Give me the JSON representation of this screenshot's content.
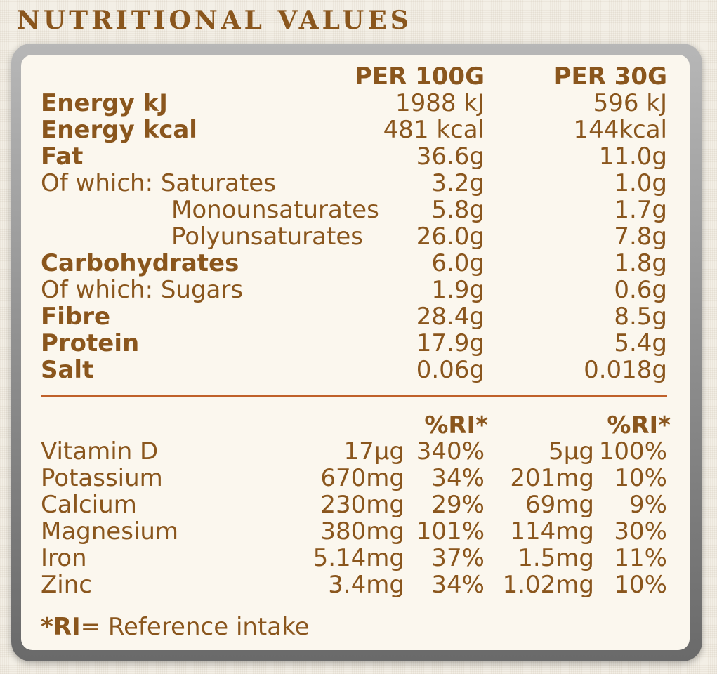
{
  "title": "NUTRITIONAL VALUES",
  "headers": {
    "per100": "PER 100G",
    "per30": "PER 30G"
  },
  "rows": [
    {
      "label": "Energy kJ",
      "per100": "1988 kJ",
      "per30": "596 kJ"
    },
    {
      "label": "Energy kcal",
      "per100": "481 kcal",
      "per30": "144kcal"
    },
    {
      "label": "Fat",
      "per100": "36.6g",
      "per30": "11.0g"
    },
    {
      "label": "Of which: Saturates",
      "per100": "3.2g",
      "per30": "1.0g"
    },
    {
      "label": "Monounsaturates",
      "per100": "5.8g",
      "per30": "1.7g"
    },
    {
      "label": "Polyunsaturates",
      "per100": "26.0g",
      "per30": "7.8g"
    },
    {
      "label": "Carbohydrates",
      "per100": "6.0g",
      "per30": "1.8g"
    },
    {
      "label": "Of which: Sugars",
      "per100": "1.9g",
      "per30": "0.6g"
    },
    {
      "label": "Fibre",
      "per100": "28.4g",
      "per30": "8.5g"
    },
    {
      "label": "Protein",
      "per100": "17.9g",
      "per30": "5.4g"
    },
    {
      "label": "Salt",
      "per100": "0.06g",
      "per30": "0.018g"
    }
  ],
  "ri_header": {
    "per100": "%RI*",
    "per30": "%RI*"
  },
  "vitamins": [
    {
      "label": "Vitamin D",
      "amt100": "17µg",
      "ri100": "340%",
      "amt30": "5µg",
      "ri30": "100%"
    },
    {
      "label": "Potassium",
      "amt100": "670mg",
      "ri100": "34%",
      "amt30": "201mg",
      "ri30": "10%"
    },
    {
      "label": "Calcium",
      "amt100": "230mg",
      "ri100": "29%",
      "amt30": "69mg",
      "ri30": "9%"
    },
    {
      "label": "Magnesium",
      "amt100": "380mg",
      "ri100": "101%",
      "amt30": "114mg",
      "ri30": "30%"
    },
    {
      "label": "Iron",
      "amt100": "5.14mg",
      "ri100": "37%",
      "amt30": "1.5mg",
      "ri30": "11%"
    },
    {
      "label": "Zinc",
      "amt100": "3.4mg",
      "ri100": "34%",
      "amt30": "1.02mg",
      "ri30": "10%"
    }
  ],
  "footnote": {
    "key": "*RI",
    "text": "= Reference intake"
  },
  "colors": {
    "text": "#8a561d",
    "divider": "#c0612a",
    "card": "#fbf7ee",
    "frame": "#8f8f8f"
  }
}
